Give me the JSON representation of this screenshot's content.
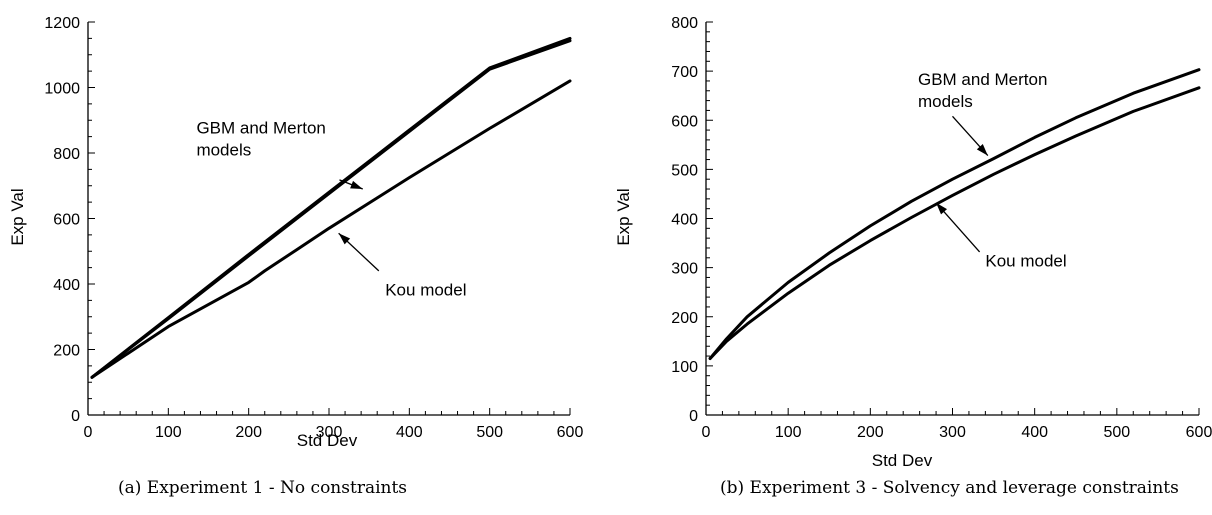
{
  "chart_data": [
    {
      "type": "line",
      "caption": "(a) Experiment 1 - No constraints",
      "xlabel": "Std Dev",
      "ylabel": "Exp Val",
      "xlim": [
        0,
        600
      ],
      "ylim": [
        0,
        1200
      ],
      "xticks": [
        0,
        100,
        200,
        300,
        400,
        500,
        600
      ],
      "yticks": [
        0,
        200,
        400,
        600,
        800,
        1000,
        1200
      ],
      "grid": false,
      "series": [
        {
          "x": [
            5,
            100,
            200,
            300,
            400,
            500,
            600
          ],
          "y": [
            115,
            297,
            490,
            680,
            870,
            1060,
            1150
          ]
        },
        {
          "x": [
            5,
            100,
            200,
            300,
            400,
            500,
            600
          ],
          "y": [
            115,
            294,
            486,
            676,
            866,
            1056,
            1143
          ]
        },
        {
          "x": [
            5,
            100,
            200,
            220,
            260,
            300,
            400,
            500,
            600
          ],
          "y": [
            115,
            270,
            405,
            440,
            505,
            570,
            725,
            875,
            1020
          ]
        }
      ],
      "annotations": [
        {
          "lines": [
            "GBM and Merton",
            "models"
          ],
          "tx": 135,
          "ty": 860,
          "ax": 313,
          "ay": 718,
          "hx": 342,
          "hy": 690
        },
        {
          "lines": [
            "Kou model"
          ],
          "tx": 370,
          "ty": 365,
          "ax": 362,
          "ay": 440,
          "hx": 312,
          "hy": 555
        }
      ]
    },
    {
      "type": "line",
      "caption": "(b) Experiment 3 - Solvency and leverage constraints",
      "xlabel": "Std Dev",
      "ylabel": "Exp Val",
      "xlim": [
        0,
        600
      ],
      "ylim": [
        0,
        800
      ],
      "xticks": [
        0,
        100,
        200,
        300,
        400,
        500,
        600
      ],
      "yticks": [
        0,
        100,
        200,
        300,
        400,
        500,
        600,
        700,
        800
      ],
      "grid": false,
      "series": [
        {
          "x": [
            5,
            25,
            50,
            100,
            150,
            200,
            250,
            300,
            350,
            400,
            450,
            520,
            600
          ],
          "y": [
            115,
            155,
            200,
            270,
            330,
            385,
            435,
            480,
            522,
            565,
            605,
            655,
            703
          ]
        },
        {
          "x": [
            5,
            25,
            50,
            100,
            150,
            200,
            250,
            300,
            350,
            400,
            450,
            520,
            600
          ],
          "y": [
            115,
            150,
            185,
            248,
            305,
            355,
            402,
            447,
            490,
            530,
            568,
            618,
            666
          ]
        }
      ],
      "annotations": [
        {
          "lines": [
            "GBM and Merton",
            "models"
          ],
          "tx": 258,
          "ty": 672,
          "ax": 300,
          "ay": 608,
          "hx": 343,
          "hy": 528
        },
        {
          "lines": [
            "Kou model"
          ],
          "tx": 340,
          "ty": 302,
          "ax": 333,
          "ay": 332,
          "hx": 280,
          "hy": 432
        }
      ]
    }
  ]
}
